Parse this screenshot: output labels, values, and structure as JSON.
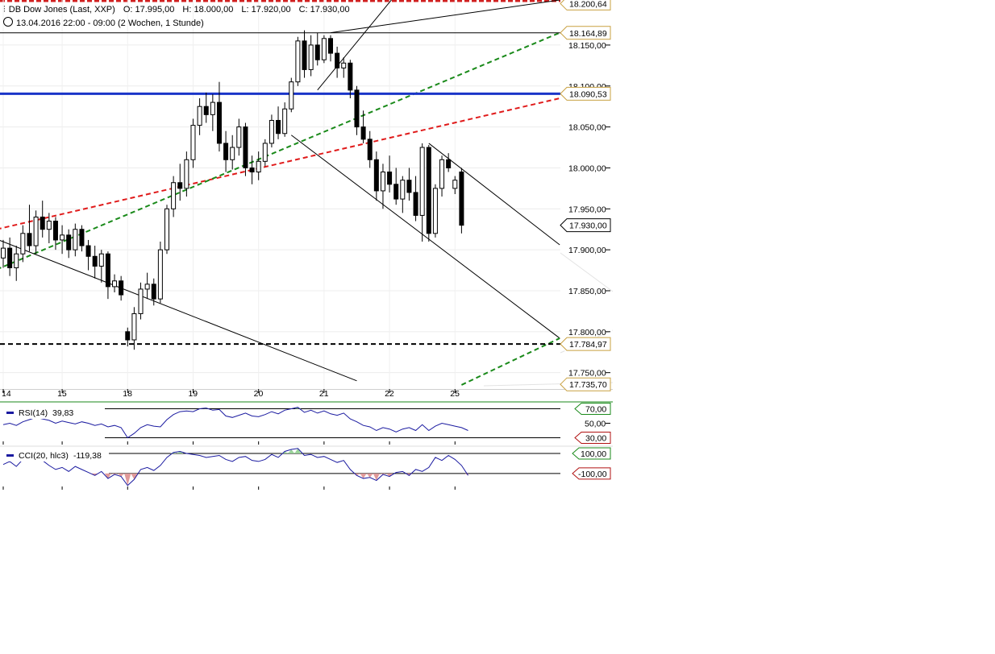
{
  "header": {
    "instrument": "DB Dow Jones (Last, XXP)",
    "open": "O: 17.995,00",
    "high": "H: 18.000,00",
    "low": "L: 17.920,00",
    "close": "C: 17.930,00",
    "timeframe": "13.04.2016 22:00 - 09:00 (2 Wochen, 1 Stunde)"
  },
  "colors": {
    "candle": "#000000",
    "blue_level": "#1a35c8",
    "red_trend": "#e01b1b",
    "green_trend": "#1a8a1a",
    "support": "#000000",
    "indicator_line": "#1a1aa0",
    "overbought_fill": "#9ad49a",
    "oversold_fill": "#e09a9a"
  },
  "chart_data": [
    {
      "type": "candlestick",
      "title": "DB Dow Jones (Last, XXP)",
      "ylim": [
        17730,
        18205
      ],
      "y_ticks": [
        {
          "value": 18150,
          "label": "18.150,00"
        },
        {
          "value": 18100,
          "label": "18.100,00"
        },
        {
          "value": 18050,
          "label": "18.050,00"
        },
        {
          "value": 18000,
          "label": "18.000,00"
        },
        {
          "value": 17950,
          "label": "17.950,00"
        },
        {
          "value": 17900,
          "label": "17.900,00"
        },
        {
          "value": 17850,
          "label": "17.850,00"
        },
        {
          "value": 17800,
          "label": "17.800,00"
        },
        {
          "value": 17750,
          "label": "17.750,00"
        }
      ],
      "x_ticks": [
        {
          "index": 0,
          "label": "14"
        },
        {
          "index": 9,
          "label": "15"
        },
        {
          "index": 19,
          "label": "18"
        },
        {
          "index": 29,
          "label": "19"
        },
        {
          "index": 39,
          "label": "20"
        },
        {
          "index": 49,
          "label": "21"
        },
        {
          "index": 59,
          "label": "22"
        },
        {
          "index": 69,
          "label": "25"
        }
      ],
      "price_tags": [
        {
          "value": 18200.64,
          "label": "18.200,64",
          "color": "#c8a040"
        },
        {
          "value": 18164.89,
          "label": "18.164,89",
          "color": "#c8a040"
        },
        {
          "value": 18090.53,
          "label": "18.090,53",
          "color": "#c8a040"
        },
        {
          "value": 17930.0,
          "label": "17.930,00",
          "color": "#000000"
        },
        {
          "value": 17784.97,
          "label": "17.784,97",
          "color": "#c8a040"
        },
        {
          "value": 17735.7,
          "label": "17.735,70",
          "color": "#c8a040"
        }
      ],
      "levels": [
        {
          "value": 18164.89,
          "style": "solid-thin"
        },
        {
          "value": 18090.53,
          "style": "solid-blue"
        },
        {
          "value": 17784.97,
          "style": "dashed-black"
        }
      ],
      "candles": [
        {
          "o": 17890,
          "h": 17912,
          "l": 17878,
          "c": 17902
        },
        {
          "o": 17902,
          "h": 17915,
          "l": 17868,
          "c": 17878
        },
        {
          "o": 17878,
          "h": 17905,
          "l": 17862,
          "c": 17895
        },
        {
          "o": 17895,
          "h": 17930,
          "l": 17885,
          "c": 17920
        },
        {
          "o": 17920,
          "h": 17955,
          "l": 17898,
          "c": 17905
        },
        {
          "o": 17905,
          "h": 17948,
          "l": 17895,
          "c": 17940
        },
        {
          "o": 17940,
          "h": 17960,
          "l": 17915,
          "c": 17925
        },
        {
          "o": 17925,
          "h": 17945,
          "l": 17908,
          "c": 17935
        },
        {
          "o": 17935,
          "h": 17940,
          "l": 17900,
          "c": 17912
        },
        {
          "o": 17912,
          "h": 17930,
          "l": 17895,
          "c": 17918
        },
        {
          "o": 17918,
          "h": 17925,
          "l": 17890,
          "c": 17900
        },
        {
          "o": 17900,
          "h": 17932,
          "l": 17892,
          "c": 17925
        },
        {
          "o": 17925,
          "h": 17930,
          "l": 17898,
          "c": 17905
        },
        {
          "o": 17905,
          "h": 17912,
          "l": 17875,
          "c": 17892
        },
        {
          "o": 17892,
          "h": 17905,
          "l": 17865,
          "c": 17880
        },
        {
          "o": 17880,
          "h": 17900,
          "l": 17860,
          "c": 17895
        },
        {
          "o": 17895,
          "h": 17898,
          "l": 17840,
          "c": 17855
        },
        {
          "o": 17855,
          "h": 17870,
          "l": 17848,
          "c": 17862
        },
        {
          "o": 17862,
          "h": 17868,
          "l": 17838,
          "c": 17845
        },
        {
          "o": 17800,
          "h": 17805,
          "l": 17782,
          "c": 17790
        },
        {
          "o": 17790,
          "h": 17830,
          "l": 17778,
          "c": 17822
        },
        {
          "o": 17822,
          "h": 17860,
          "l": 17815,
          "c": 17852
        },
        {
          "o": 17852,
          "h": 17872,
          "l": 17840,
          "c": 17858
        },
        {
          "o": 17858,
          "h": 17865,
          "l": 17832,
          "c": 17840
        },
        {
          "o": 17840,
          "h": 17910,
          "l": 17835,
          "c": 17900
        },
        {
          "o": 17900,
          "h": 17955,
          "l": 17895,
          "c": 17950
        },
        {
          "o": 17950,
          "h": 17990,
          "l": 17940,
          "c": 17982
        },
        {
          "o": 17982,
          "h": 18005,
          "l": 17960,
          "c": 17975
        },
        {
          "o": 17975,
          "h": 18020,
          "l": 17965,
          "c": 18010
        },
        {
          "o": 18010,
          "h": 18060,
          "l": 18000,
          "c": 18052
        },
        {
          "o": 18052,
          "h": 18085,
          "l": 18040,
          "c": 18075
        },
        {
          "o": 18075,
          "h": 18092,
          "l": 18055,
          "c": 18065
        },
        {
          "o": 18065,
          "h": 18090,
          "l": 18045,
          "c": 18080
        },
        {
          "o": 18080,
          "h": 18105,
          "l": 18020,
          "c": 18030
        },
        {
          "o": 18030,
          "h": 18045,
          "l": 17995,
          "c": 18010
        },
        {
          "o": 18010,
          "h": 18040,
          "l": 17998,
          "c": 18025
        },
        {
          "o": 18025,
          "h": 18060,
          "l": 18015,
          "c": 18050
        },
        {
          "o": 18050,
          "h": 18055,
          "l": 17990,
          "c": 18000
        },
        {
          "o": 18000,
          "h": 18015,
          "l": 17980,
          "c": 17995
        },
        {
          "o": 17995,
          "h": 18020,
          "l": 17985,
          "c": 18008
        },
        {
          "o": 18008,
          "h": 18035,
          "l": 18002,
          "c": 18030
        },
        {
          "o": 18030,
          "h": 18065,
          "l": 18025,
          "c": 18058
        },
        {
          "o": 18058,
          "h": 18075,
          "l": 18035,
          "c": 18042
        },
        {
          "o": 18042,
          "h": 18080,
          "l": 18038,
          "c": 18072
        },
        {
          "o": 18072,
          "h": 18110,
          "l": 18068,
          "c": 18105
        },
        {
          "o": 18105,
          "h": 18160,
          "l": 18100,
          "c": 18155
        },
        {
          "o": 18155,
          "h": 18168,
          "l": 18110,
          "c": 18120
        },
        {
          "o": 18120,
          "h": 18162,
          "l": 18112,
          "c": 18150
        },
        {
          "o": 18150,
          "h": 18165,
          "l": 18125,
          "c": 18132
        },
        {
          "o": 18132,
          "h": 18162,
          "l": 18128,
          "c": 18158
        },
        {
          "o": 18158,
          "h": 18162,
          "l": 18130,
          "c": 18140
        },
        {
          "o": 18140,
          "h": 18148,
          "l": 18110,
          "c": 18122
        },
        {
          "o": 18122,
          "h": 18135,
          "l": 18110,
          "c": 18128
        },
        {
          "o": 18128,
          "h": 18132,
          "l": 18085,
          "c": 18095
        },
        {
          "o": 18095,
          "h": 18100,
          "l": 18040,
          "c": 18050
        },
        {
          "o": 18050,
          "h": 18070,
          "l": 18030,
          "c": 18035
        },
        {
          "o": 18035,
          "h": 18045,
          "l": 18000,
          "c": 18010
        },
        {
          "o": 18010,
          "h": 18020,
          "l": 17960,
          "c": 17972
        },
        {
          "o": 17972,
          "h": 18005,
          "l": 17950,
          "c": 17995
        },
        {
          "o": 17995,
          "h": 18015,
          "l": 17970,
          "c": 17980
        },
        {
          "o": 17980,
          "h": 18000,
          "l": 17955,
          "c": 17962
        },
        {
          "o": 17962,
          "h": 17990,
          "l": 17945,
          "c": 17985
        },
        {
          "o": 17985,
          "h": 18000,
          "l": 17960,
          "c": 17970
        },
        {
          "o": 17970,
          "h": 17990,
          "l": 17935,
          "c": 17942
        },
        {
          "o": 17942,
          "h": 18030,
          "l": 17910,
          "c": 18025
        },
        {
          "o": 18025,
          "h": 18028,
          "l": 17910,
          "c": 17920
        },
        {
          "o": 17920,
          "h": 17980,
          "l": 17915,
          "c": 17975
        },
        {
          "o": 17975,
          "h": 18015,
          "l": 17965,
          "c": 18010
        },
        {
          "o": 18010,
          "h": 18018,
          "l": 17995,
          "c": 18000
        },
        {
          "o": 17975,
          "h": 17990,
          "l": 17968,
          "c": 17985
        },
        {
          "o": 17995,
          "h": 18000,
          "l": 17920,
          "c": 17930
        }
      ],
      "trend_lines": [
        {
          "style": "dashed-red",
          "p1": [
            -1,
            17925
          ],
          "p2": [
            85,
            18085
          ]
        },
        {
          "style": "dashed-green",
          "p1": [
            -1,
            17876
          ],
          "p2": [
            85,
            18165
          ]
        },
        {
          "style": "solid",
          "p1": [
            -1,
            17913
          ],
          "p2": [
            54,
            17740
          ]
        },
        {
          "style": "solid",
          "p1": [
            44,
            18040
          ],
          "p2": [
            85,
            17792
          ]
        },
        {
          "style": "solid",
          "p1": [
            65,
            18030
          ],
          "p2": [
            85,
            17906
          ]
        },
        {
          "style": "solid",
          "p1": [
            50,
            18165
          ],
          "p2": [
            85,
            18205
          ]
        },
        {
          "style": "solid",
          "p1": [
            48,
            18095
          ],
          "p2": [
            60,
            18212
          ]
        },
        {
          "style": "dashed-green",
          "p1": [
            70,
            17735
          ],
          "p2": [
            85,
            17792
          ]
        }
      ]
    },
    {
      "type": "line",
      "title": "RSI(14)",
      "value_label": "39,83",
      "ylim": [
        25,
        75
      ],
      "levels": [
        {
          "value": 70,
          "label": "70,00"
        },
        {
          "value": 50,
          "label": "50,00"
        },
        {
          "value": 30,
          "label": "30,00"
        }
      ],
      "values": [
        48,
        50,
        47,
        52,
        55,
        58,
        56,
        54,
        50,
        53,
        51,
        49,
        52,
        50,
        47,
        49,
        45,
        47,
        44,
        30,
        36,
        44,
        48,
        46,
        45,
        55,
        62,
        66,
        67,
        66,
        70,
        71,
        68,
        69,
        60,
        58,
        61,
        64,
        60,
        59,
        62,
        66,
        63,
        68,
        70,
        72,
        65,
        68,
        64,
        67,
        63,
        61,
        64,
        56,
        52,
        47,
        45,
        40,
        44,
        42,
        38,
        42,
        44,
        40,
        48,
        40,
        46,
        50,
        48,
        46,
        44,
        40
      ]
    },
    {
      "type": "line",
      "title": "CCI(20, hlc3)",
      "value_label": "-119,38",
      "ylim": [
        -230,
        140
      ],
      "levels": [
        {
          "value": 100,
          "label": "100,00"
        },
        {
          "value": -100,
          "label": "-100,00"
        }
      ],
      "values": [
        -10,
        20,
        -30,
        40,
        60,
        80,
        30,
        -20,
        -60,
        -40,
        -80,
        -30,
        -60,
        -90,
        -120,
        -80,
        -150,
        -110,
        -130,
        -220,
        -160,
        -60,
        -40,
        -70,
        -20,
        60,
        110,
        120,
        100,
        90,
        80,
        60,
        70,
        80,
        40,
        20,
        60,
        70,
        30,
        20,
        40,
        90,
        60,
        120,
        140,
        150,
        80,
        90,
        60,
        70,
        40,
        10,
        30,
        -60,
        -120,
        -150,
        -140,
        -170,
        -110,
        -130,
        -90,
        -80,
        -120,
        -60,
        -80,
        -40,
        60,
        30,
        80,
        40,
        -20,
        -119
      ]
    }
  ]
}
